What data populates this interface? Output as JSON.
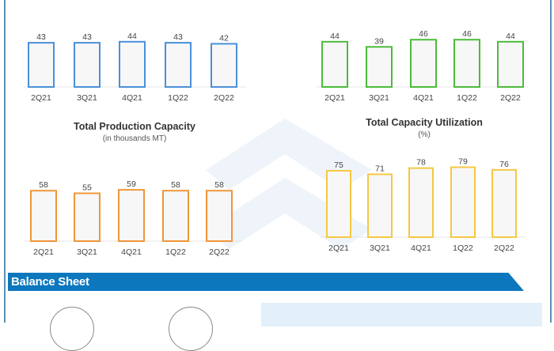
{
  "chart_data": [
    {
      "type": "bar",
      "title": "",
      "categories": [
        "2Q21",
        "3Q21",
        "4Q21",
        "1Q22",
        "2Q22"
      ],
      "values": [
        43,
        43,
        44,
        43,
        42
      ],
      "color": "#4a90d9",
      "ylim": [
        0,
        60
      ]
    },
    {
      "type": "bar",
      "title": "",
      "categories": [
        "2Q21",
        "3Q21",
        "4Q21",
        "1Q22",
        "2Q22"
      ],
      "values": [
        44,
        39,
        46,
        46,
        44
      ],
      "color": "#4cbb3a",
      "ylim": [
        0,
        60
      ]
    },
    {
      "type": "bar",
      "title": "Total Production Capacity",
      "subtitle": "(in thousands MT)",
      "categories": [
        "2Q21",
        "3Q21",
        "4Q21",
        "1Q22",
        "2Q22"
      ],
      "values": [
        58,
        55,
        59,
        58,
        58
      ],
      "color": "#f0963a",
      "ylim": [
        0,
        80
      ]
    },
    {
      "type": "bar",
      "title": "Total Capacity Utilization",
      "subtitle": "(%)",
      "categories": [
        "2Q21",
        "3Q21",
        "4Q21",
        "1Q22",
        "2Q22"
      ],
      "values": [
        75,
        71,
        78,
        79,
        76
      ],
      "color": "#f5c842",
      "ylim": [
        0,
        100
      ]
    }
  ],
  "section": {
    "title": "Balance Sheet",
    "color": "#0c77bd"
  }
}
